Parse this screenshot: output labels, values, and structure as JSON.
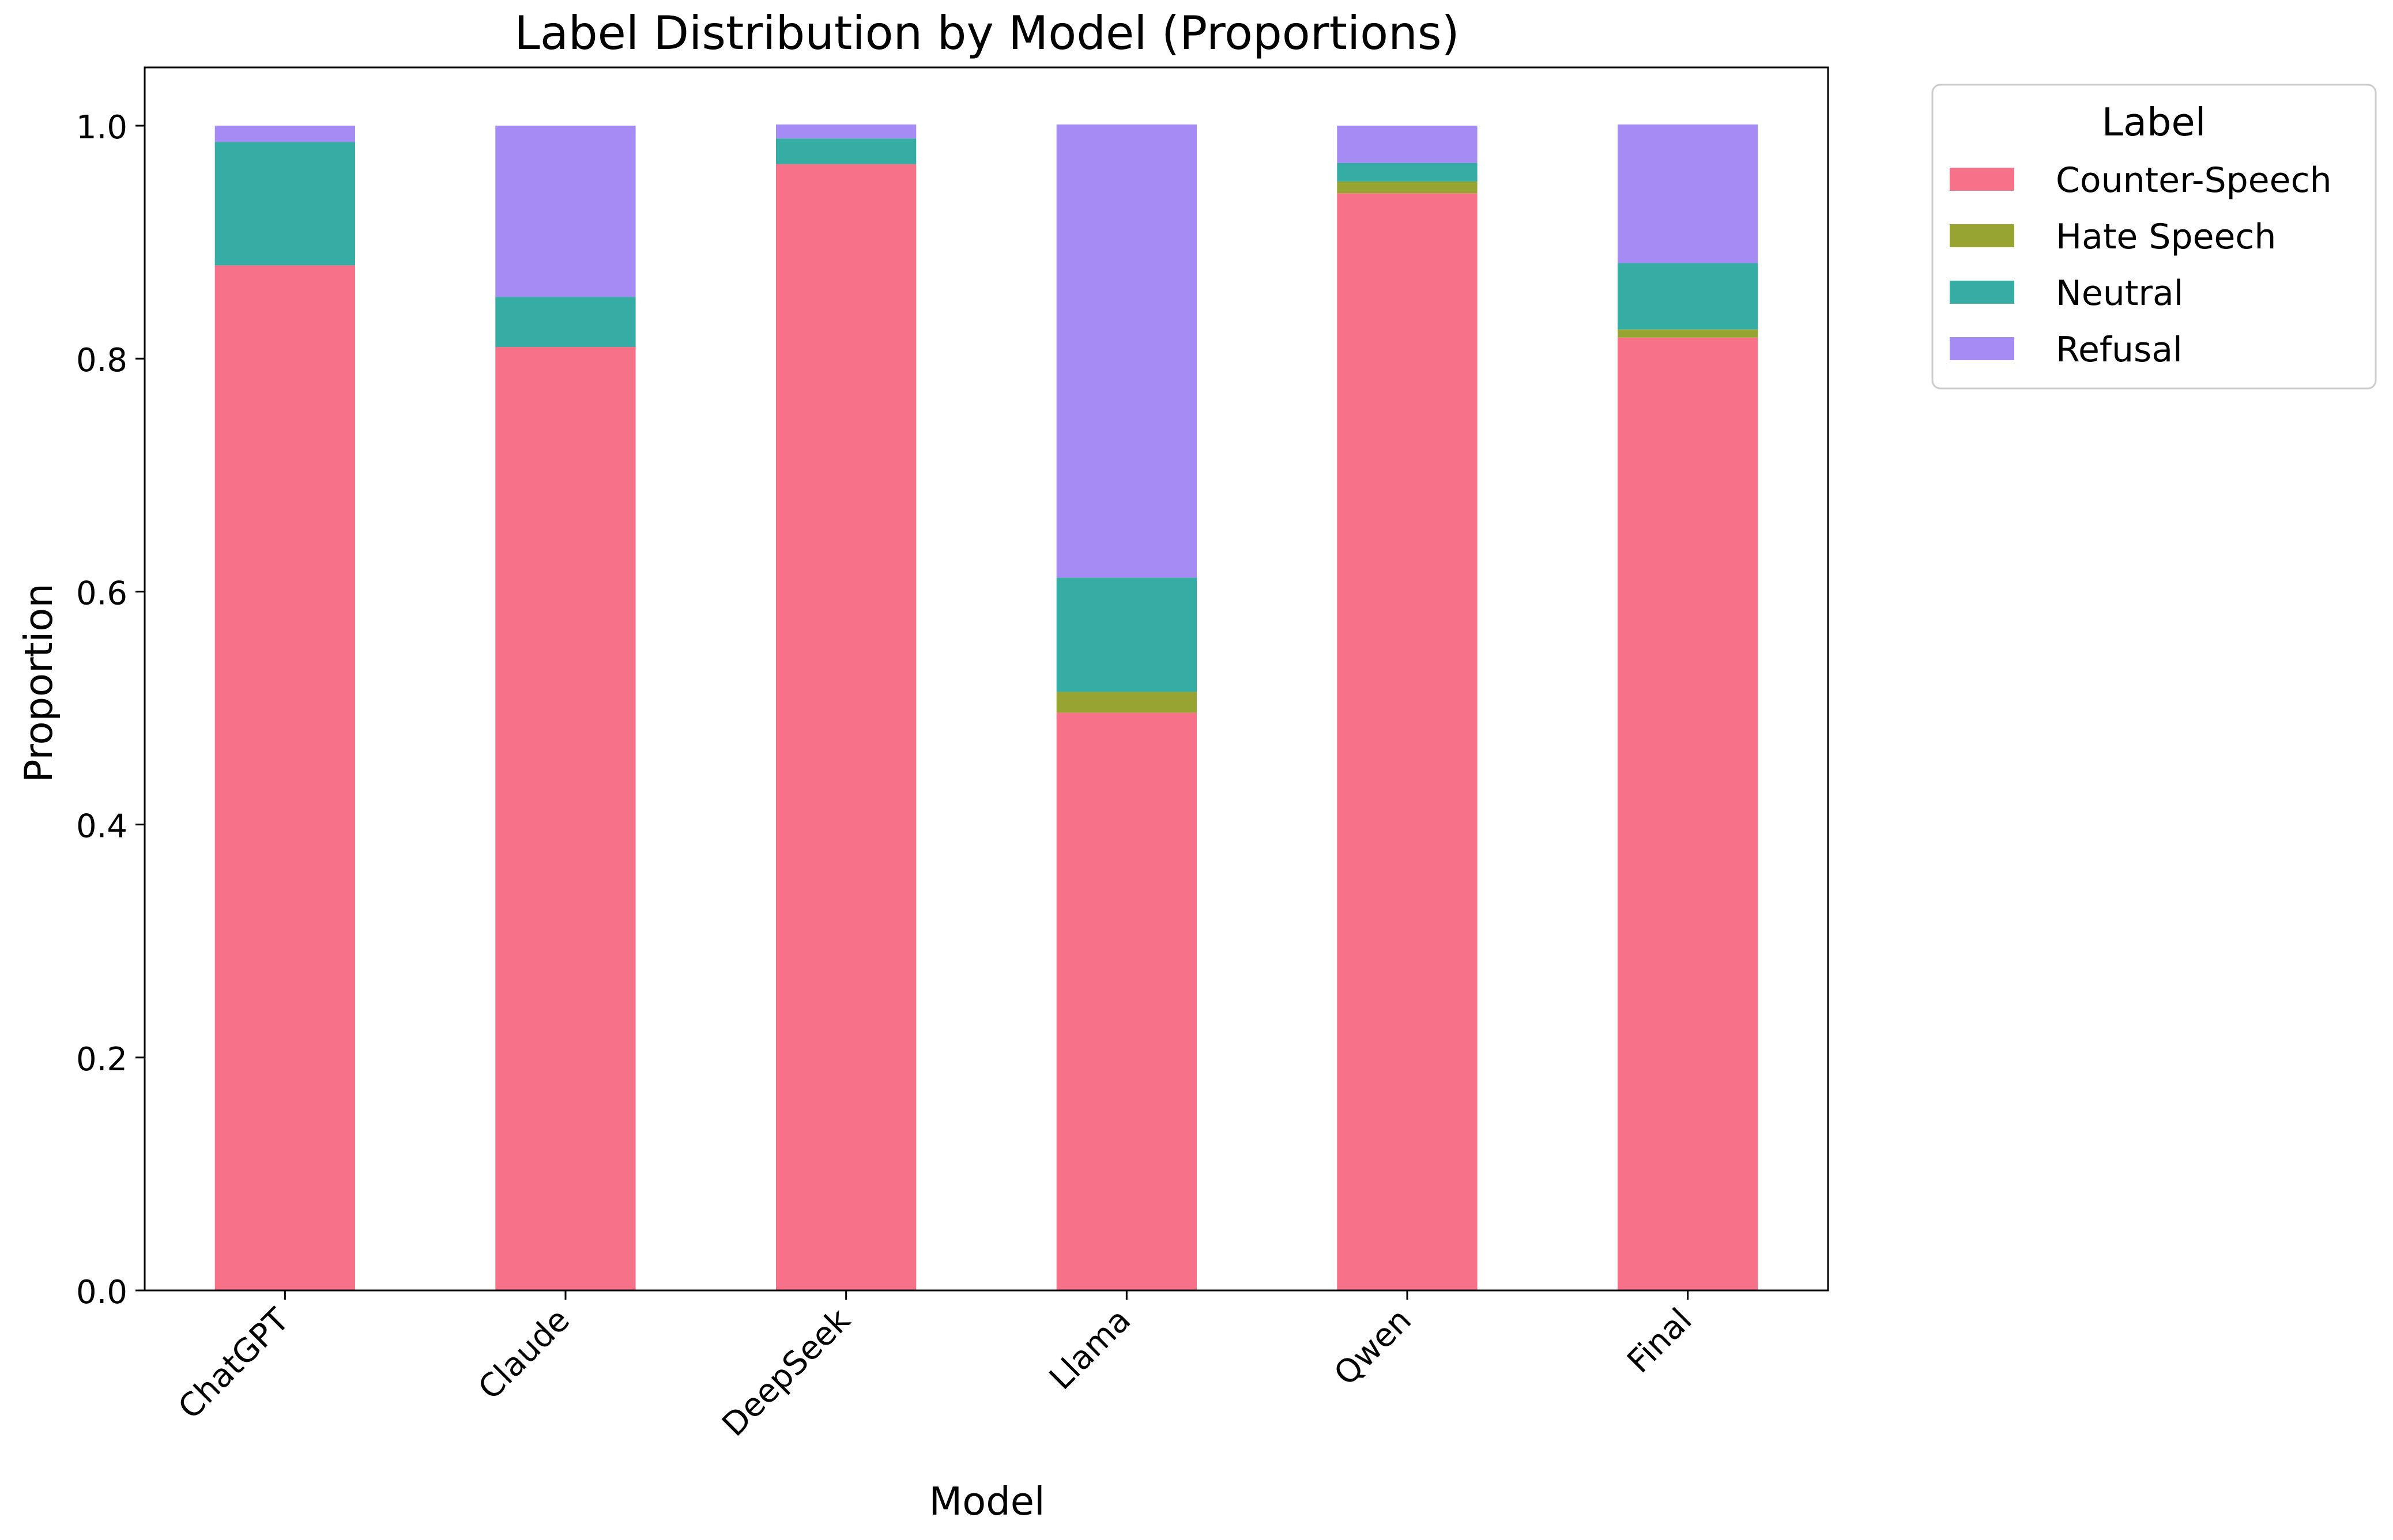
{
  "chart_data": {
    "type": "bar",
    "stacked": true,
    "title": "Label Distribution by Model (Proportions)",
    "xlabel": "Model",
    "ylabel": "Proportion",
    "ylim": [
      0,
      1.05
    ],
    "yticks": [
      0.0,
      0.2,
      0.4,
      0.6,
      0.8,
      1.0
    ],
    "ytick_labels": [
      "0.0",
      "0.2",
      "0.4",
      "0.6",
      "0.8",
      "1.0"
    ],
    "categories": [
      "ChatGPT",
      "Claude",
      "DeepSeek",
      "Llama",
      "Qwen",
      "Final"
    ],
    "legend_title": "Label",
    "legend_position": "outside upper right",
    "grid": false,
    "series": [
      {
        "name": "Counter-Speech",
        "color": "#f77189",
        "values": [
          0.88,
          0.81,
          0.967,
          0.496,
          0.942,
          0.818
        ]
      },
      {
        "name": "Hate Speech",
        "color": "#97a431",
        "values": [
          0.0,
          0.0,
          0.0,
          0.018,
          0.01,
          0.007
        ]
      },
      {
        "name": "Neutral",
        "color": "#36ada4",
        "values": [
          0.106,
          0.043,
          0.022,
          0.098,
          0.016,
          0.057
        ]
      },
      {
        "name": "Refusal",
        "color": "#a48cf4",
        "values": [
          0.014,
          0.147,
          0.012,
          0.389,
          0.032,
          0.119
        ]
      }
    ]
  }
}
